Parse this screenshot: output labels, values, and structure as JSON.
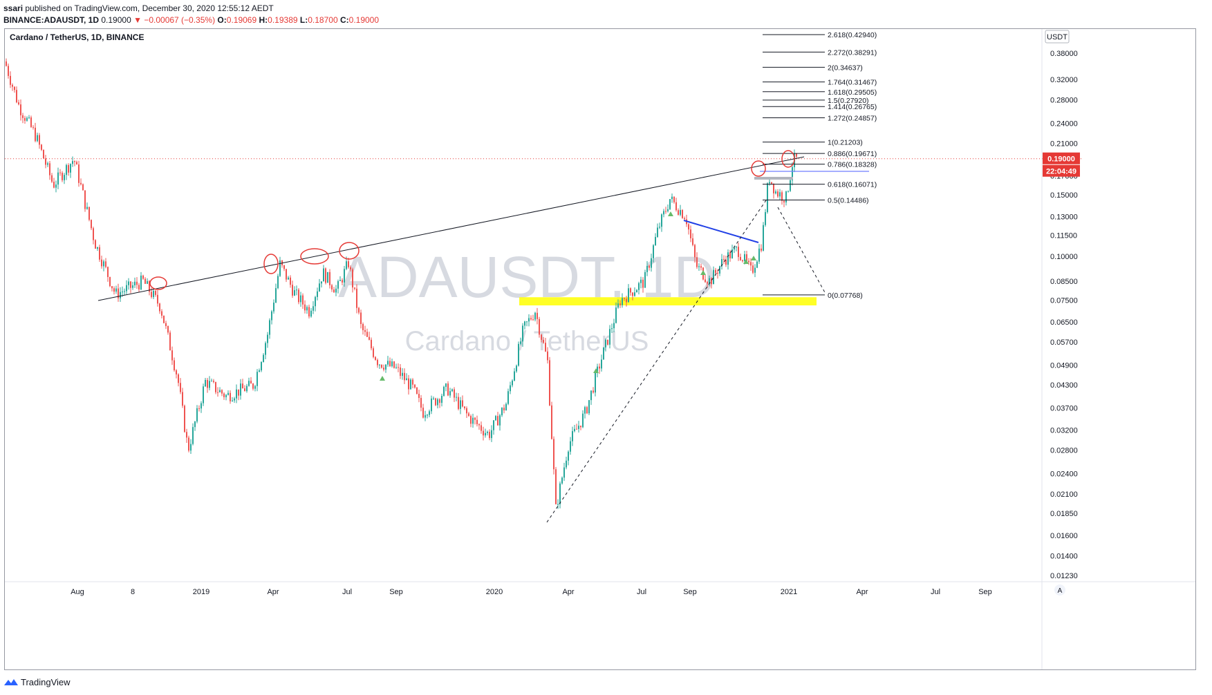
{
  "header": {
    "author": "ssari",
    "published": "published on TradingView.com, December 30, 2020 12:55:12 AEDT",
    "symbol_line": "BINANCE:ADAUSDT, 1D",
    "last_price": "0.19000",
    "change_arrow": "▼",
    "change": "−0.00067 (−0.35%)",
    "o_label": "O:",
    "o_value": "0.19069",
    "h_label": "H:",
    "h_value": "0.19389",
    "l_label": "L:",
    "l_value": "0.18700",
    "c_label": "C:",
    "c_value": "0.19000"
  },
  "chart_data": {
    "type": "candlestick",
    "title": "Cardano / TetherUS, 1D, BINANCE",
    "watermark_symbol": "ADAUSDT, 1D",
    "watermark_name": "Cardano / TetherUS",
    "currency": "USDT",
    "y_scale": "log",
    "y_ticks": [
      "0.38000",
      "0.32000",
      "0.28000",
      "0.24000",
      "0.21000",
      "0.17000",
      "0.15000",
      "0.13000",
      "0.11500",
      "0.10000",
      "0.08500",
      "0.07500",
      "0.06500",
      "0.05700",
      "0.04900",
      "0.04300",
      "0.03700",
      "0.03200",
      "0.02800",
      "0.02400",
      "0.02100",
      "0.01850",
      "0.01600",
      "0.01400",
      "0.01230"
    ],
    "x_ticks": [
      "Aug",
      "8",
      "2019",
      "Apr",
      "Jul",
      "Sep",
      "2020",
      "Apr",
      "Jul",
      "Sep",
      "2021",
      "Apr",
      "Jul",
      "Sep"
    ],
    "price_marker": "0.19000",
    "countdown": "22:04:49",
    "price_path": [
      [
        0,
        0.36
      ],
      [
        20,
        0.27
      ],
      [
        45,
        0.22
      ],
      [
        70,
        0.16
      ],
      [
        100,
        0.19
      ],
      [
        130,
        0.11
      ],
      [
        160,
        0.078
      ],
      [
        200,
        0.085
      ],
      [
        225,
        0.072
      ],
      [
        250,
        0.045
      ],
      [
        265,
        0.028
      ],
      [
        290,
        0.044
      ],
      [
        320,
        0.04
      ],
      [
        360,
        0.043
      ],
      [
        380,
        0.06
      ],
      [
        398,
        0.095
      ],
      [
        420,
        0.078
      ],
      [
        440,
        0.07
      ],
      [
        460,
        0.09
      ],
      [
        480,
        0.08
      ],
      [
        497,
        0.096
      ],
      [
        515,
        0.063
      ],
      [
        540,
        0.05
      ],
      [
        565,
        0.048
      ],
      [
        590,
        0.042
      ],
      [
        605,
        0.036
      ],
      [
        640,
        0.042
      ],
      [
        670,
        0.035
      ],
      [
        700,
        0.031
      ],
      [
        725,
        0.038
      ],
      [
        750,
        0.062
      ],
      [
        767,
        0.07
      ],
      [
        785,
        0.05
      ],
      [
        797,
        0.019
      ],
      [
        815,
        0.029
      ],
      [
        840,
        0.036
      ],
      [
        860,
        0.049
      ],
      [
        890,
        0.075
      ],
      [
        925,
        0.085
      ],
      [
        945,
        0.12
      ],
      [
        962,
        0.146
      ],
      [
        985,
        0.13
      ],
      [
        1000,
        0.094
      ],
      [
        1020,
        0.085
      ],
      [
        1040,
        0.098
      ],
      [
        1060,
        0.105
      ],
      [
        1080,
        0.09
      ],
      [
        1095,
        0.11
      ],
      [
        1105,
        0.17
      ],
      [
        1115,
        0.153
      ],
      [
        1130,
        0.147
      ],
      [
        1140,
        0.188
      ],
      [
        1148,
        0.19
      ]
    ],
    "fib_levels": [
      {
        "label": "2.618(0.42940)",
        "value": 0.4294
      },
      {
        "label": "2.272(0.38291)",
        "value": 0.38291
      },
      {
        "label": "2(0.34637)",
        "value": 0.34637
      },
      {
        "label": "1.764(0.31467)",
        "value": 0.31467
      },
      {
        "label": "1.618(0.29505)",
        "value": 0.29505
      },
      {
        "label": "1.5(0.27920)",
        "value": 0.2792
      },
      {
        "label": "1.414(0.26765)",
        "value": 0.26765
      },
      {
        "label": "1.272(0.24857)",
        "value": 0.24857
      },
      {
        "label": "1(0.21203)",
        "value": 0.21203
      },
      {
        "label": "0.886(0.19671)",
        "value": 0.19671
      },
      {
        "label": "0.786(0.18328)",
        "value": 0.18328
      },
      {
        "label": "0.618(0.16071)",
        "value": 0.16071
      },
      {
        "label": "0.5(0.14486)",
        "value": 0.14486
      },
      {
        "label": "0(0.07768)",
        "value": 0.07768
      }
    ],
    "support_zone": {
      "from": 0.0725,
      "to": 0.0765,
      "color": "#ffff00"
    },
    "annotations": [
      "ascending resistance trendline",
      "red circles on touch points",
      "blue descending trendline",
      "dashed projection lines"
    ]
  },
  "footer": {
    "brand": "TradingView"
  }
}
